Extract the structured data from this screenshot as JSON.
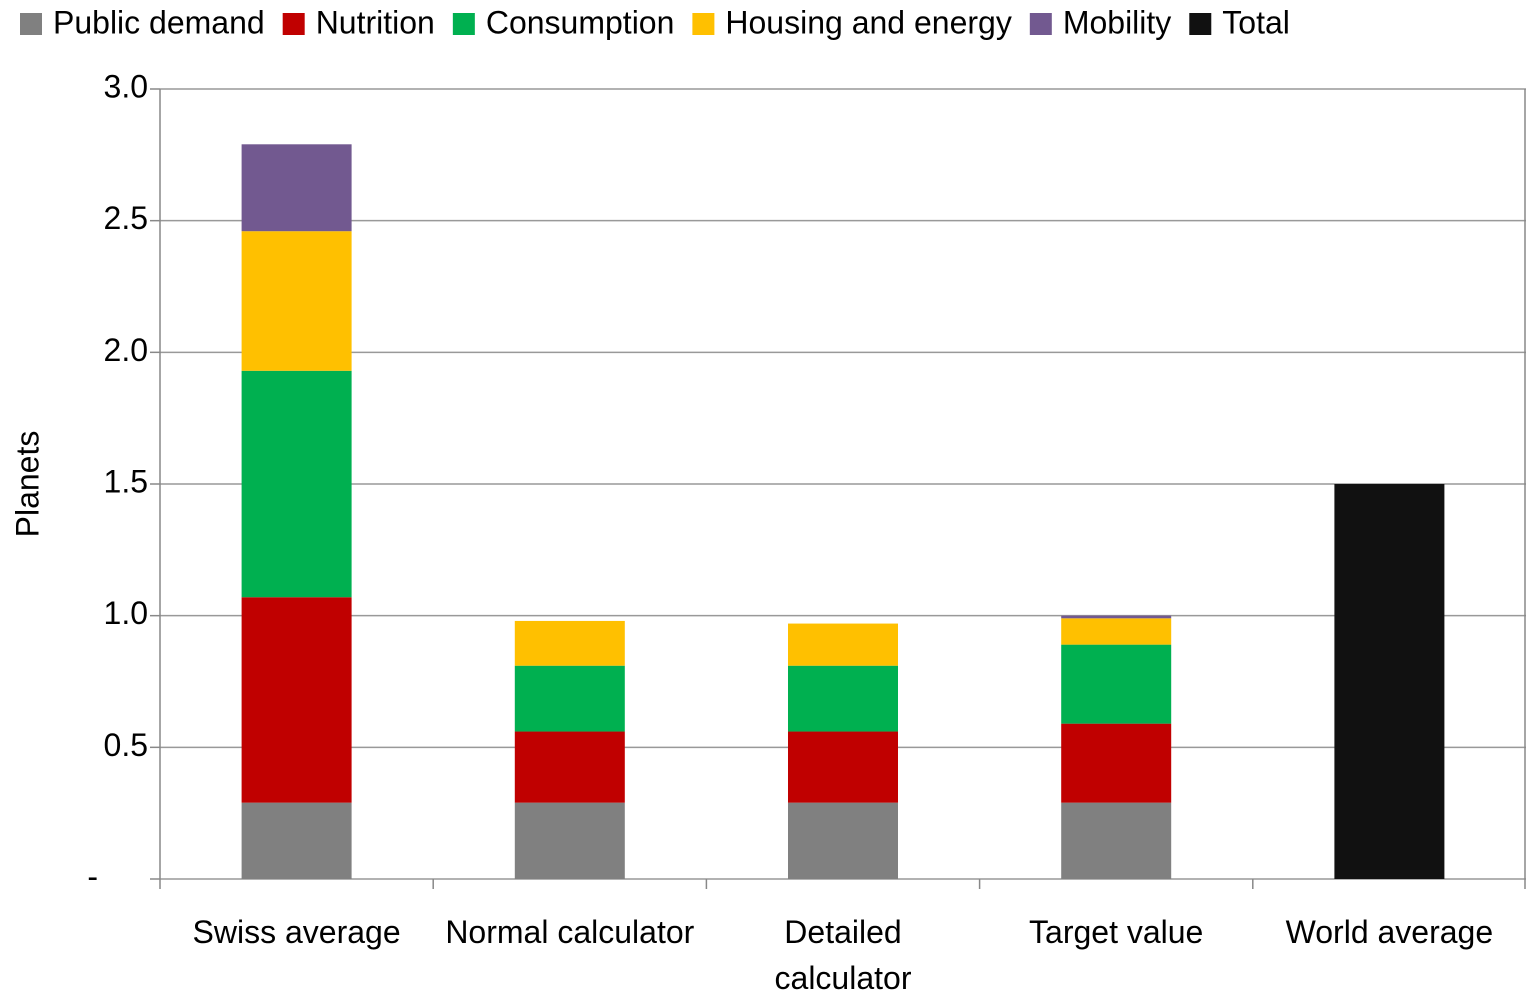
{
  "chart_data": {
    "type": "stacked_bar",
    "y_label": "Planets",
    "categories": [
      "Swiss average",
      "Normal calculator",
      "Detailed calculator",
      "Target value",
      "World average"
    ],
    "series": [
      {
        "name": "Public demand",
        "color": "#808080",
        "values": [
          0.29,
          0.29,
          0.29,
          0.29,
          null
        ]
      },
      {
        "name": "Nutrition",
        "color": "#c00000",
        "values": [
          0.78,
          0.27,
          0.27,
          0.3,
          null
        ]
      },
      {
        "name": "Consumption",
        "color": "#00b050",
        "values": [
          0.86,
          0.25,
          0.25,
          0.3,
          null
        ]
      },
      {
        "name": "Housing and energy",
        "color": "#ffc000",
        "values": [
          0.53,
          0.17,
          0.16,
          0.1,
          null
        ]
      },
      {
        "name": "Mobility",
        "color": "#725990",
        "values": [
          0.33,
          null,
          null,
          0.01,
          null
        ]
      },
      {
        "name": "Total",
        "color": "#111111",
        "values": [
          null,
          null,
          null,
          null,
          1.5
        ]
      }
    ],
    "ylim": [
      0,
      3
    ],
    "yticks": [
      {
        "value": 0,
        "label": "-"
      },
      0.5,
      {
        "value": 1,
        "label": "1.0"
      },
      1.5,
      {
        "value": 2,
        "label": "2.0"
      },
      2.5,
      {
        "value": 3,
        "label": "3.0"
      }
    ],
    "grid": true,
    "legend": "top"
  }
}
